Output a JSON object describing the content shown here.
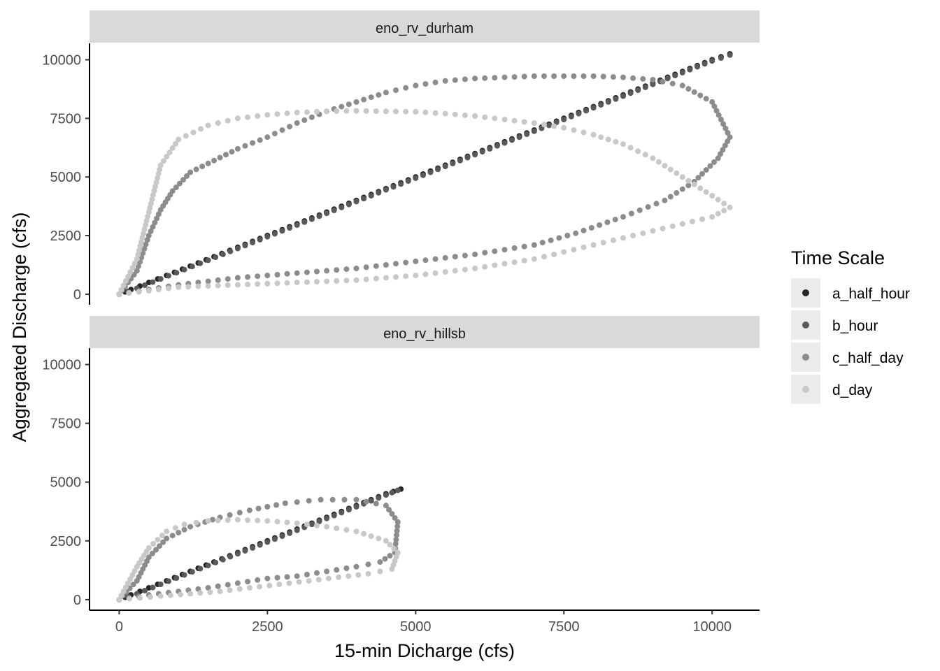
{
  "chart_data": {
    "type": "scatter",
    "xlabel": "15-min Dicharge (cfs)",
    "ylabel": "Aggregated Discharge (cfs)",
    "xlim": [
      -500,
      10800
    ],
    "ylim": [
      -450,
      10700
    ],
    "x_ticks": [
      0,
      2500,
      5000,
      7500,
      10000
    ],
    "y_ticks": [
      0,
      2500,
      5000,
      7500,
      10000
    ],
    "x_tick_labels": [
      "0",
      "2500",
      "5000",
      "7500",
      "10000"
    ],
    "y_tick_labels": [
      "0",
      "2500",
      "5000",
      "7500",
      "10000"
    ],
    "legend": {
      "title": "Time Scale",
      "position": "right",
      "entries": [
        {
          "label": "a_half_hour",
          "color": "#262626"
        },
        {
          "label": "b_hour",
          "color": "#595959"
        },
        {
          "label": "c_half_day",
          "color": "#8c8c8c"
        },
        {
          "label": "d_day",
          "color": "#c8c8c8"
        }
      ]
    },
    "panels": [
      {
        "title": "eno_rv_durham",
        "series": [
          {
            "name": "a_half_hour",
            "color": "#262626",
            "x": [
              0,
              200,
              500,
              800,
              1200,
              1600,
              2000,
              2500,
              3000,
              3500,
              4000,
              4500,
              5000,
              5500,
              6000,
              6500,
              7000,
              7500,
              8000,
              8500,
              9000,
              9500,
              10000,
              10300
            ],
            "y": [
              0,
              200,
              500,
              800,
              1200,
              1600,
              2000,
              2500,
              3000,
              3500,
              4000,
              4500,
              5000,
              5500,
              6000,
              6500,
              7000,
              7500,
              8000,
              8500,
              9000,
              9500,
              10000,
              10250
            ]
          },
          {
            "name": "b_hour",
            "color": "#595959",
            "x": [
              0,
              300,
              700,
              1100,
              1500,
              2000,
              2500,
              3000,
              3500,
              4000,
              4500,
              5000,
              5500,
              6000,
              6500,
              7000,
              7500,
              8000,
              8500,
              9000,
              9500,
              10000,
              10300
            ],
            "y": [
              0,
              250,
              650,
              1050,
              1450,
              1950,
              2450,
              2950,
              3450,
              3950,
              4450,
              4950,
              5450,
              5950,
              6450,
              6950,
              7450,
              7950,
              8450,
              8950,
              9450,
              9950,
              10200
            ]
          },
          {
            "name": "c_half_day",
            "color": "#8c8c8c",
            "x": [
              0,
              300,
              500,
              700,
              900,
              1200,
              1600,
              2000,
              2500,
              3000,
              3500,
              4000,
              4500,
              5000,
              5500,
              6000,
              6500,
              7000,
              7500,
              8000,
              8500,
              9000,
              9500,
              10000,
              10300,
              10100,
              9700,
              9200,
              8500,
              7700,
              7000,
              6000,
              5000,
              4000,
              3000,
              2000,
              1000,
              0
            ],
            "y": [
              0,
              1000,
              2500,
              3600,
              4400,
              5200,
              5700,
              6200,
              6700,
              7300,
              7800,
              8200,
              8600,
              8900,
              9100,
              9200,
              9250,
              9300,
              9300,
              9300,
              9250,
              9150,
              8900,
              8200,
              6700,
              5800,
              4800,
              4000,
              3300,
              2600,
              2100,
              1700,
              1400,
              1100,
              900,
              700,
              400,
              0
            ]
          },
          {
            "name": "d_day",
            "color": "#c8c8c8",
            "x": [
              0,
              300,
              500,
              700,
              1000,
              1500,
              2000,
              2500,
              3000,
              3500,
              4000,
              4500,
              5000,
              5500,
              6000,
              6500,
              7000,
              7500,
              8000,
              8500,
              9000,
              9500,
              10000,
              10300,
              10000,
              9500,
              9000,
              8500,
              8000,
              7500,
              7000,
              6000,
              5000,
              4000,
              3000,
              2000,
              1000,
              0
            ],
            "y": [
              0,
              1500,
              3500,
              5500,
              6600,
              7200,
              7500,
              7650,
              7750,
              7800,
              7820,
              7800,
              7780,
              7700,
              7600,
              7450,
              7300,
              7100,
              6800,
              6400,
              5800,
              5000,
              4200,
              3700,
              3300,
              3000,
              2700,
              2400,
              2100,
              1800,
              1500,
              1100,
              800,
              600,
              500,
              400,
              300,
              0
            ]
          }
        ]
      },
      {
        "title": "eno_rv_hillsb",
        "series": [
          {
            "name": "a_half_hour",
            "color": "#262626",
            "x": [
              0,
              200,
              500,
              800,
              1200,
              1600,
              2000,
              2500,
              3000,
              3500,
              4000,
              4500,
              4750
            ],
            "y": [
              0,
              200,
              500,
              800,
              1200,
              1600,
              2000,
              2500,
              3000,
              3500,
              4000,
              4500,
              4700
            ]
          },
          {
            "name": "b_hour",
            "color": "#595959",
            "x": [
              0,
              300,
              700,
              1100,
              1500,
              2000,
              2500,
              3000,
              3500,
              4000,
              4500,
              4700
            ],
            "y": [
              0,
              250,
              650,
              1050,
              1450,
              1950,
              2450,
              2950,
              3450,
              3950,
              4450,
              4650
            ]
          },
          {
            "name": "c_half_day",
            "color": "#8c8c8c",
            "x": [
              0,
              300,
              500,
              800,
              1200,
              1700,
              2200,
              2800,
              3400,
              4000,
              4500,
              4700,
              4650,
              4400,
              4000,
              3500,
              3000,
              2500,
              2000,
              1500,
              1000,
              500,
              0
            ],
            "y": [
              0,
              800,
              1800,
              2600,
              3100,
              3500,
              3800,
              4100,
              4250,
              4250,
              4000,
              3300,
              2000,
              1600,
              1400,
              1200,
              1000,
              900,
              700,
              500,
              350,
              200,
              0
            ]
          },
          {
            "name": "d_day",
            "color": "#c8c8c8",
            "x": [
              0,
              300,
              500,
              800,
              1100,
              1500,
              2000,
              2500,
              3000,
              3500,
              4000,
              4500,
              4700,
              4600,
              4200,
              3700,
              3200,
              2700,
              2200,
              1700,
              1200,
              700,
              0
            ],
            "y": [
              0,
              1400,
              2200,
              2900,
              3200,
              3350,
              3400,
              3350,
              3250,
              3100,
              2900,
              2500,
              2000,
              1300,
              1100,
              950,
              800,
              650,
              500,
              350,
              250,
              150,
              0
            ]
          }
        ]
      }
    ]
  }
}
